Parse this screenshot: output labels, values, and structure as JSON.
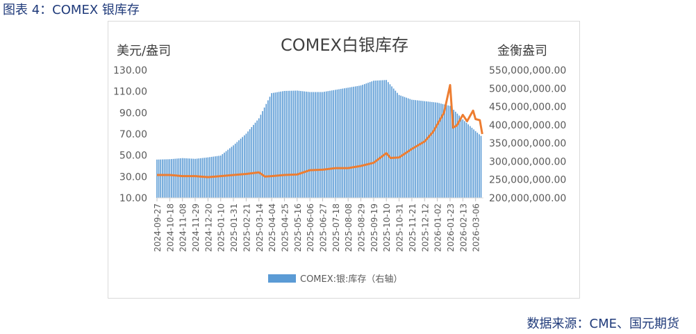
{
  "figure_title": "图表 4：COMEX 银库存",
  "source_note": "数据来源：CME、国元期货",
  "chart_data": {
    "type": "bar+line",
    "title": "COMEX白银库存",
    "ylabel_left": "美元/盎司",
    "ylabel_right": "金衡盎司",
    "left_axis": {
      "ylim": [
        10,
        130
      ],
      "ticks": [
        "10.00",
        "30.00",
        "50.00",
        "70.00",
        "90.00",
        "110.00",
        "130.00"
      ]
    },
    "right_axis": {
      "ylim": [
        200000000,
        550000000
      ],
      "ticks": [
        "200,000,000.00",
        "250,000,000.00",
        "300,000,000.00",
        "350,000,000.00",
        "400,000,000.00",
        "450,000,000.00",
        "500,000,000.00",
        "550,000,000.00"
      ]
    },
    "x_tick_labels": [
      "2024-09-27",
      "2024-10-18",
      "2024-11-08",
      "2024-11-29",
      "2024-12-20",
      "2025-01-10",
      "2025-01-31",
      "2025-02-21",
      "2025-03-14",
      "2025-04-04",
      "2025-04-25",
      "2025-05-16",
      "2025-06-06",
      "2025-06-27",
      "2025-07-18",
      "2025-08-08",
      "2025-08-29",
      "2025-09-19",
      "2025-10-10",
      "2025-10-31",
      "2025-11-21",
      "2025-12-12",
      "2026-01-02",
      "2026-01-23",
      "2026-02-13",
      "2026-03-06"
    ],
    "legend": {
      "position": "bottom",
      "entries": [
        "COMEX:银:库存（右轴）"
      ]
    },
    "colors": {
      "bar": "#5b9bd5",
      "line": "#ed7d31",
      "text": "#595959",
      "title": "#404040"
    },
    "series": [
      {
        "name": "COMEX:银:库存（右轴）",
        "kind": "bar",
        "axis": "right",
        "x": [
          "2024-09-27",
          "2024-10-18",
          "2024-11-08",
          "2024-11-29",
          "2024-12-20",
          "2025-01-10",
          "2025-01-31",
          "2025-02-21",
          "2025-03-14",
          "2025-04-04",
          "2025-04-25",
          "2025-05-16",
          "2025-06-06",
          "2025-06-27",
          "2025-07-18",
          "2025-08-08",
          "2025-08-29",
          "2025-09-19",
          "2025-10-10",
          "2025-10-31",
          "2025-11-21",
          "2025-12-12",
          "2026-01-02",
          "2026-01-23",
          "2026-02-13",
          "2026-03-06",
          "2026-03-17"
        ],
        "values": [
          305000000,
          306000000,
          309000000,
          307000000,
          311000000,
          316000000,
          344000000,
          376000000,
          418000000,
          487000000,
          493000000,
          494000000,
          490000000,
          490000000,
          496000000,
          502000000,
          508000000,
          521000000,
          523000000,
          482000000,
          469000000,
          465000000,
          461000000,
          452000000,
          415000000,
          383000000,
          367000000
        ]
      },
      {
        "kind": "line",
        "axis": "left",
        "x": [
          "2024-09-27",
          "2024-10-18",
          "2024-11-08",
          "2024-11-29",
          "2024-12-20",
          "2025-01-10",
          "2025-01-31",
          "2025-02-21",
          "2025-03-14",
          "2025-03-24",
          "2025-04-04",
          "2025-04-25",
          "2025-05-16",
          "2025-06-06",
          "2025-06-27",
          "2025-07-18",
          "2025-08-08",
          "2025-08-29",
          "2025-09-19",
          "2025-10-10",
          "2025-10-17",
          "2025-10-31",
          "2025-11-21",
          "2025-12-12",
          "2025-12-26",
          "2026-01-02",
          "2026-01-13",
          "2026-01-23",
          "2026-01-28",
          "2026-02-03",
          "2026-02-13",
          "2026-02-20",
          "2026-03-02",
          "2026-03-06",
          "2026-03-13",
          "2026-03-17"
        ],
        "values": [
          31.5,
          31.5,
          30.5,
          30.5,
          29.5,
          30.5,
          31.5,
          32.5,
          34.0,
          30.0,
          30.5,
          31.5,
          32.0,
          36.0,
          36.5,
          38.0,
          38.0,
          40.0,
          43.0,
          52.0,
          47.5,
          48.0,
          56.0,
          63.0,
          72.0,
          79.0,
          90.0,
          116.0,
          76.0,
          78.0,
          88.0,
          82.0,
          92.0,
          84.0,
          83.0,
          70.0
        ]
      }
    ]
  }
}
